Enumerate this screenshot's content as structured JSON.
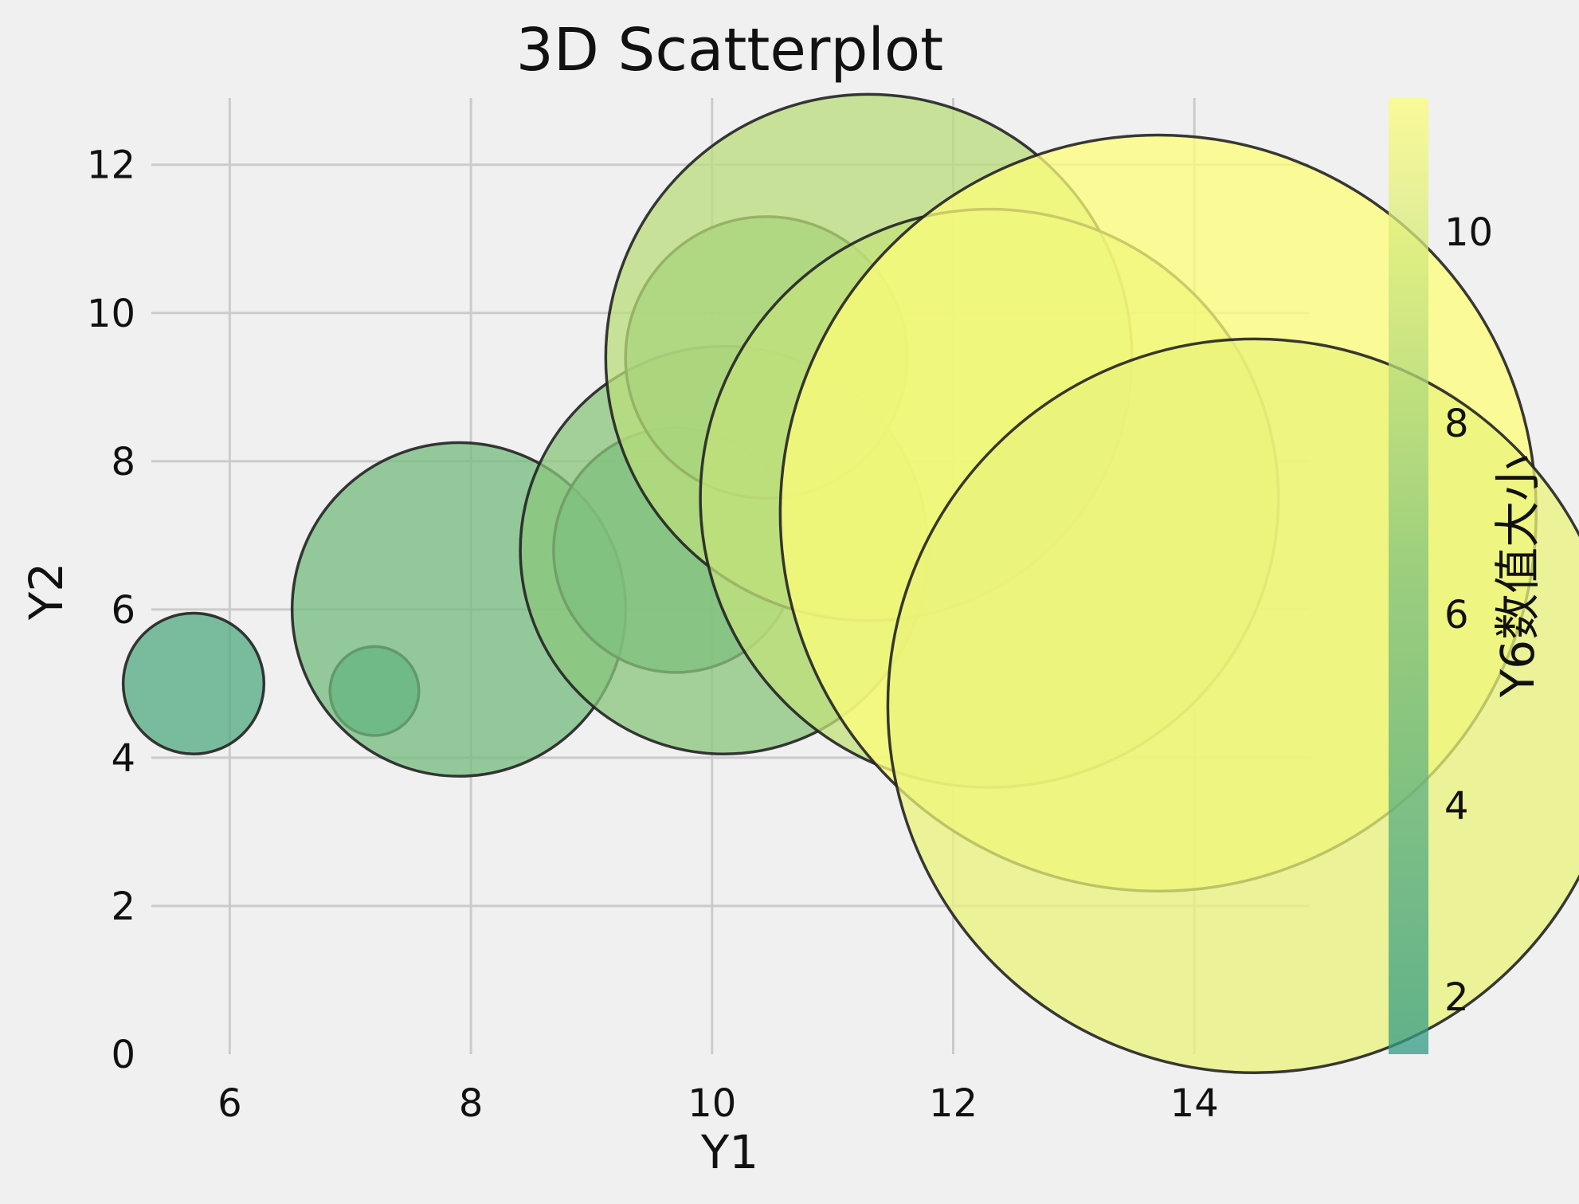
{
  "chart_data": {
    "type": "scatter",
    "title": "3D Scatterplot",
    "xlabel": "Y1",
    "ylabel": "Y2",
    "xlim": [
      5.35,
      14.95
    ],
    "ylim": [
      0,
      12.9
    ],
    "x_ticks": [
      6,
      8,
      10,
      12,
      14
    ],
    "y_ticks": [
      0,
      2,
      4,
      6,
      8,
      10,
      12
    ],
    "grid": true,
    "points": [
      {
        "x": 5.7,
        "y": 5.0,
        "size": 1.9,
        "color_value": 3.4
      },
      {
        "x": 7.2,
        "y": 4.9,
        "size": 1.2,
        "color_value": 1.7
      },
      {
        "x": 7.9,
        "y": 6.0,
        "size": 4.5,
        "color_value": 5.7
      },
      {
        "x": 9.7,
        "y": 6.8,
        "size": 3.3,
        "color_value": 4.5
      },
      {
        "x": 10.1,
        "y": 6.8,
        "size": 5.5,
        "color_value": 6.8
      },
      {
        "x": 10.45,
        "y": 9.4,
        "size": 3.8,
        "color_value": 5.6
      },
      {
        "x": 11.3,
        "y": 9.4,
        "size": 7.1,
        "color_value": 8.7
      },
      {
        "x": 12.3,
        "y": 7.5,
        "size": 7.8,
        "color_value": 9.1
      },
      {
        "x": 13.7,
        "y": 7.3,
        "size": 10.2,
        "color_value": 11.4
      },
      {
        "x": 14.5,
        "y": 4.7,
        "size": 9.9,
        "color_value": 10.6
      }
    ],
    "colorbar": {
      "label": "Y6数值大小",
      "range": [
        1.4,
        11.4
      ],
      "ticks": [
        2,
        4,
        6,
        8,
        10
      ],
      "colors": [
        "#329b85",
        "#7fc17c",
        "#fdfd7a"
      ]
    },
    "marker_alpha": 0.75,
    "marker_edge": "#222222"
  }
}
